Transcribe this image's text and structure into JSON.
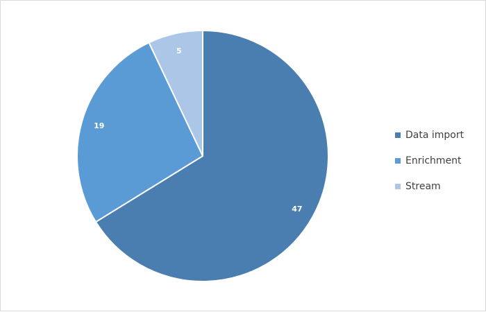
{
  "chart_data": {
    "type": "pie",
    "title": "",
    "categories": [
      "Data import",
      "Enrichment",
      "Stream"
    ],
    "values": [
      47,
      19,
      5
    ],
    "colors": [
      "#4a7eb0",
      "#5b9bd5",
      "#abc6e6"
    ],
    "start_angle": "top",
    "direction": "clockwise",
    "data_labels": [
      "47",
      "19",
      "5"
    ],
    "legend_placement": "right"
  }
}
